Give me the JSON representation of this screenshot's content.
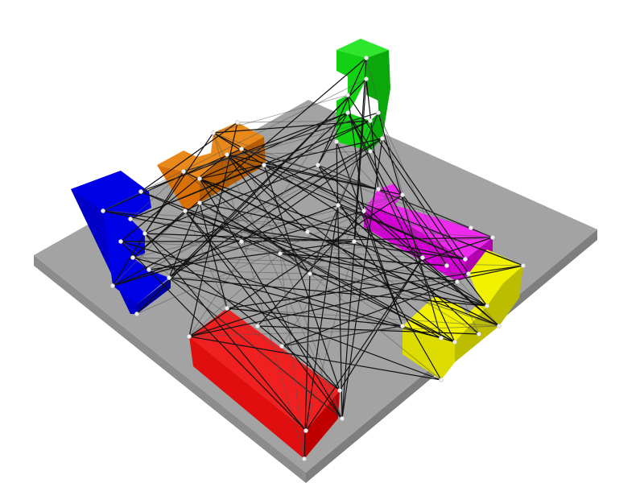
{
  "scene": {
    "name": "3d-block-puzzle-contact-graph",
    "board_color": "#a3a3a3",
    "background_color": "#ffffff",
    "edge_color": "#111111",
    "node_color": "#eeeeee"
  },
  "pieces": [
    {
      "id": "blue",
      "shape": "c-shaped-block",
      "colors": {
        "top": "#0000e6",
        "front": "#0000c8",
        "side": "#0000a0"
      }
    },
    {
      "id": "orange",
      "shape": "s-shaped-block",
      "colors": {
        "top": "#e8891a",
        "front": "#d97008",
        "side": "#b85c00"
      }
    },
    {
      "id": "green",
      "shape": "c-shaped-block",
      "colors": {
        "top": "#2ee62e",
        "front": "#12d012",
        "side": "#0aa80a"
      }
    },
    {
      "id": "magenta",
      "shape": "l-shaped-block",
      "colors": {
        "top": "#ee2aee",
        "front": "#d800d8",
        "side": "#b000b0"
      }
    },
    {
      "id": "yellow",
      "shape": "s-shaped-block",
      "colors": {
        "top": "#f2f200",
        "front": "#dcdc00",
        "side": "#bcbc00"
      }
    },
    {
      "id": "red",
      "shape": "straight-bar",
      "colors": {
        "top": "#f02020",
        "front": "#e00e0e",
        "side": "#c00000"
      }
    }
  ]
}
